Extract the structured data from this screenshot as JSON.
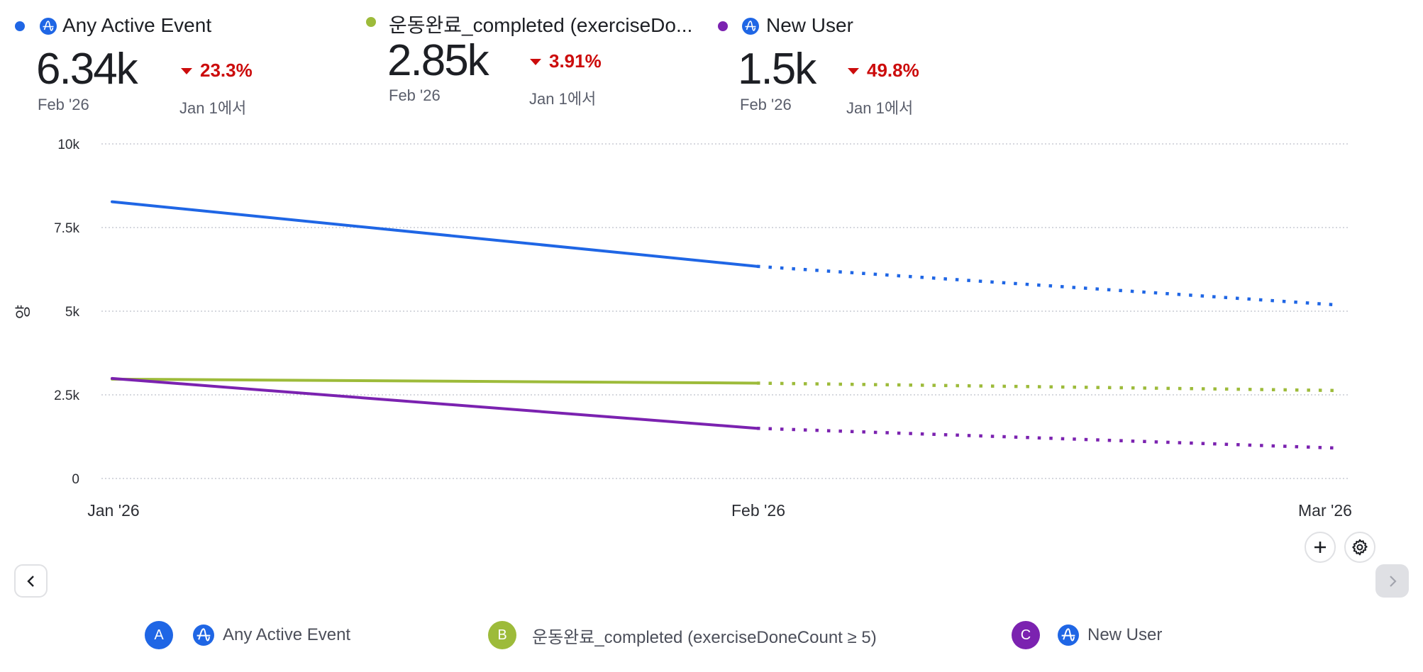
{
  "colors": {
    "series_a": "#1f66e5",
    "series_b": "#9dbb3a",
    "series_c": "#7b22b0",
    "negative_delta": "#cc0c0c",
    "icon_blue": "#1f66e5"
  },
  "summary_cards": [
    {
      "id": "A",
      "title": "Any Active Event",
      "has_icon": true,
      "icon": "amplitude-icon",
      "value": "6.34k",
      "period": "Feb '26",
      "delta": "23.3%",
      "delta_direction": "down",
      "comparison": "Jan 1에서"
    },
    {
      "id": "B",
      "title": "운동완료_completed (exerciseDo...",
      "has_icon": false,
      "value": "2.85k",
      "period": "Feb '26",
      "delta": "3.91%",
      "delta_direction": "down",
      "comparison": "Jan 1에서"
    },
    {
      "id": "C",
      "title": "New User",
      "has_icon": true,
      "icon": "amplitude-icon",
      "value": "1.5k",
      "period": "Feb '26",
      "delta": "49.8%",
      "delta_direction": "down",
      "comparison": "Jan 1에서"
    }
  ],
  "chart_data": {
    "type": "line",
    "title": "",
    "xlabel": "",
    "ylabel": "양",
    "x": [
      "Jan '26",
      "Feb '26",
      "Mar '26"
    ],
    "ylim": [
      0,
      10000
    ],
    "yticks": [
      0,
      2500,
      5000,
      7500,
      10000
    ],
    "ytick_labels": [
      "0",
      "2.5k",
      "5k",
      "7.5k",
      "10k"
    ],
    "grid": true,
    "legend": "bottom",
    "series": [
      {
        "name": "Any Active Event",
        "key": "A",
        "values": [
          8270,
          6340
        ],
        "projected": [
          6340,
          5190
        ]
      },
      {
        "name": "운동완료_completed (exerciseDoneCount ≥ 5)",
        "key": "B",
        "values": [
          2970,
          2850
        ],
        "projected": [
          2850,
          2630
        ]
      },
      {
        "name": "New User",
        "key": "C",
        "values": [
          2990,
          1500
        ],
        "projected": [
          1500,
          910
        ]
      }
    ],
    "note": "Solid segments Jan–Feb are actual; dotted segments Feb–Mar are incomplete/projected"
  },
  "controls": {
    "add_label": "+",
    "settings_label": "settings",
    "prev_label": "‹",
    "next_label": "›"
  },
  "legend": [
    {
      "badge": "A",
      "label": "Any Active Event",
      "has_icon": true
    },
    {
      "badge": "B",
      "label": "운동완료_completed (exerciseDoneCount ≥ 5)",
      "has_icon": false
    },
    {
      "badge": "C",
      "label": "New User",
      "has_icon": true
    }
  ]
}
